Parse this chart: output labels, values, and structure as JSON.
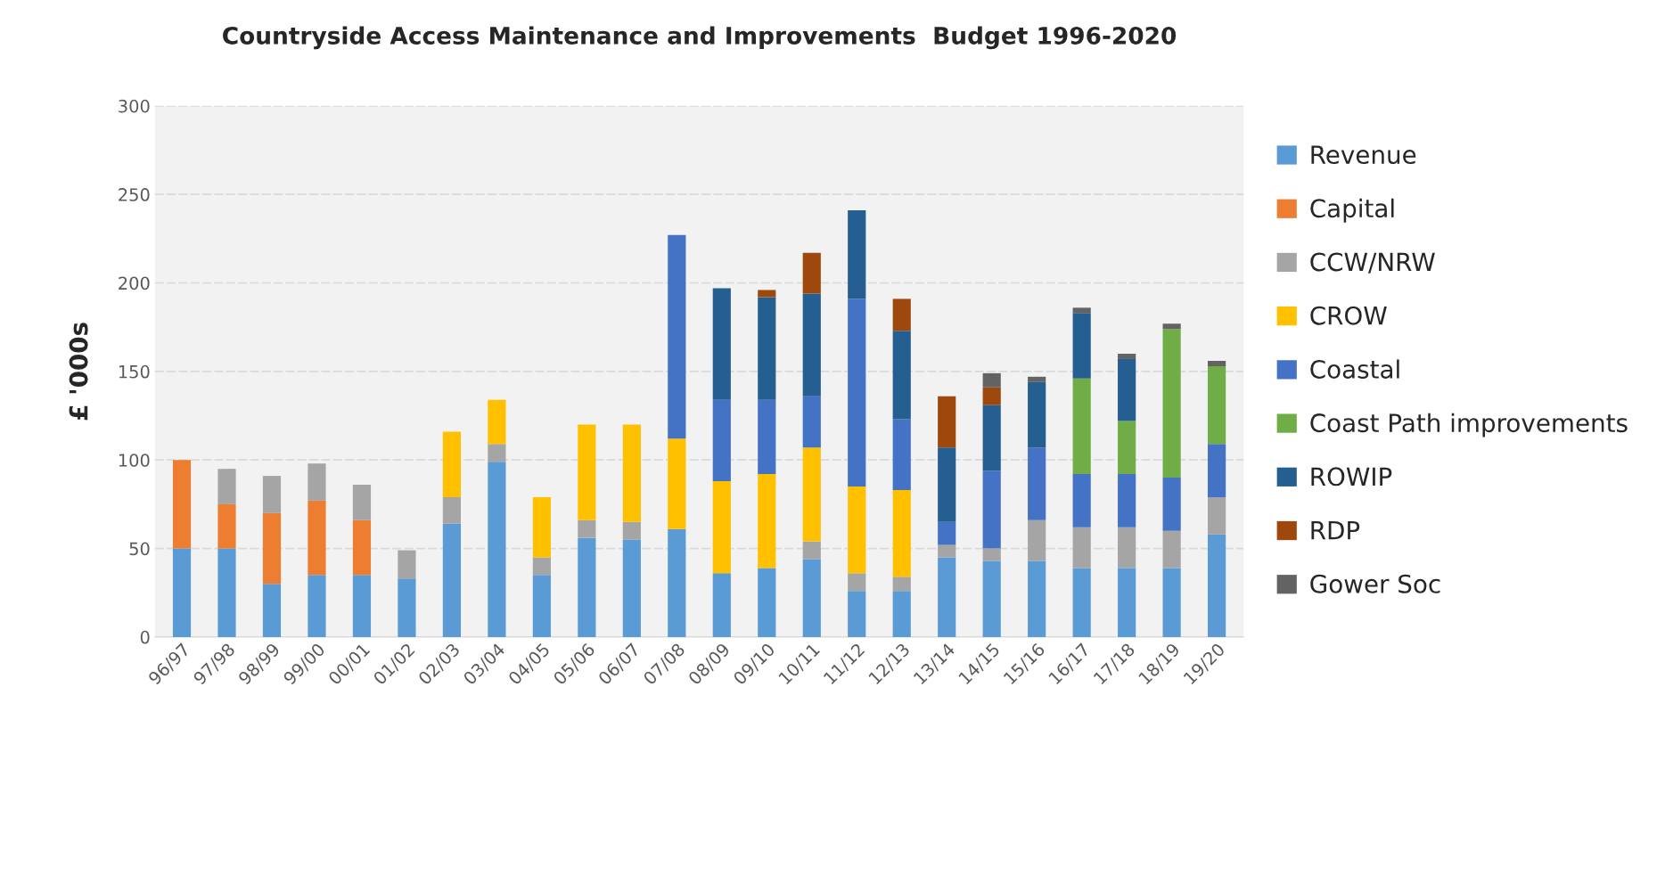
{
  "chart_data": {
    "type": "bar",
    "title": "Countryside Access Maintenance and Improvements  Budget 1996-2020",
    "ylabel": "£ '000s",
    "categories": [
      "96/97",
      "97/98",
      "98/99",
      "99/00",
      "00/01",
      "01/02",
      "02/03",
      "03/04",
      "04/05",
      "05/06",
      "06/07",
      "07/08",
      "08/09",
      "09/10",
      "10/11",
      "11/12",
      "12/13",
      "13/14",
      "14/15",
      "15/16",
      "16/17",
      "17/18",
      "18/19",
      "19/20"
    ],
    "stacked": true,
    "ylim": [
      0,
      300
    ],
    "yticks": [
      0,
      50,
      100,
      150,
      200,
      250,
      300
    ],
    "grid": "y",
    "legend": "right",
    "series": [
      {
        "name": "Revenue",
        "color": "#5b9bd5",
        "values": [
          50,
          50,
          30,
          35,
          35,
          33,
          64,
          99,
          35,
          56,
          55,
          61,
          36,
          39,
          44,
          26,
          26,
          45,
          43,
          43,
          39,
          39,
          39,
          58
        ]
      },
      {
        "name": "Capital",
        "color": "#ed7d31",
        "values": [
          50,
          25,
          40,
          42,
          31,
          null,
          null,
          null,
          null,
          null,
          null,
          null,
          null,
          null,
          null,
          null,
          null,
          null,
          null,
          null,
          null,
          null,
          null,
          null
        ]
      },
      {
        "name": "CCW/NRW",
        "color": "#a5a5a5",
        "values": [
          null,
          20,
          21,
          21,
          20,
          16,
          15,
          10,
          10,
          10,
          10,
          null,
          null,
          null,
          10,
          10,
          8,
          7,
          7,
          23,
          23,
          23,
          21,
          21
        ]
      },
      {
        "name": "CROW",
        "color": "#ffc000",
        "values": [
          null,
          null,
          null,
          null,
          null,
          null,
          37,
          25,
          34,
          54,
          55,
          51,
          52,
          53,
          53,
          49,
          49,
          null,
          null,
          null,
          null,
          null,
          null,
          null
        ]
      },
      {
        "name": "Coastal",
        "color": "#4472c4",
        "values": [
          null,
          null,
          null,
          null,
          null,
          null,
          null,
          null,
          null,
          null,
          null,
          115,
          46,
          42,
          29,
          106,
          40,
          13,
          44,
          41,
          30,
          30,
          30,
          30
        ]
      },
      {
        "name": "Coast Path improvements",
        "color": "#70ad47",
        "values": [
          null,
          null,
          null,
          null,
          null,
          null,
          null,
          null,
          null,
          null,
          null,
          null,
          null,
          null,
          null,
          null,
          null,
          null,
          null,
          null,
          54,
          30,
          84,
          44
        ]
      },
      {
        "name": "ROWIP",
        "color": "#255e91",
        "values": [
          null,
          null,
          null,
          null,
          null,
          null,
          null,
          null,
          null,
          null,
          null,
          null,
          63,
          58,
          58,
          50,
          50,
          42,
          37,
          37,
          37,
          35,
          null,
          null
        ]
      },
      {
        "name": "RDP",
        "color": "#9e480e",
        "values": [
          null,
          null,
          null,
          null,
          null,
          null,
          null,
          null,
          null,
          null,
          null,
          null,
          null,
          4,
          23,
          null,
          18,
          29,
          10,
          null,
          null,
          null,
          null,
          null
        ]
      },
      {
        "name": "Gower Soc",
        "color": "#636363",
        "values": [
          null,
          null,
          null,
          null,
          null,
          null,
          null,
          null,
          null,
          null,
          null,
          null,
          null,
          null,
          null,
          null,
          null,
          null,
          8,
          3,
          3,
          3,
          3,
          3
        ]
      }
    ]
  }
}
